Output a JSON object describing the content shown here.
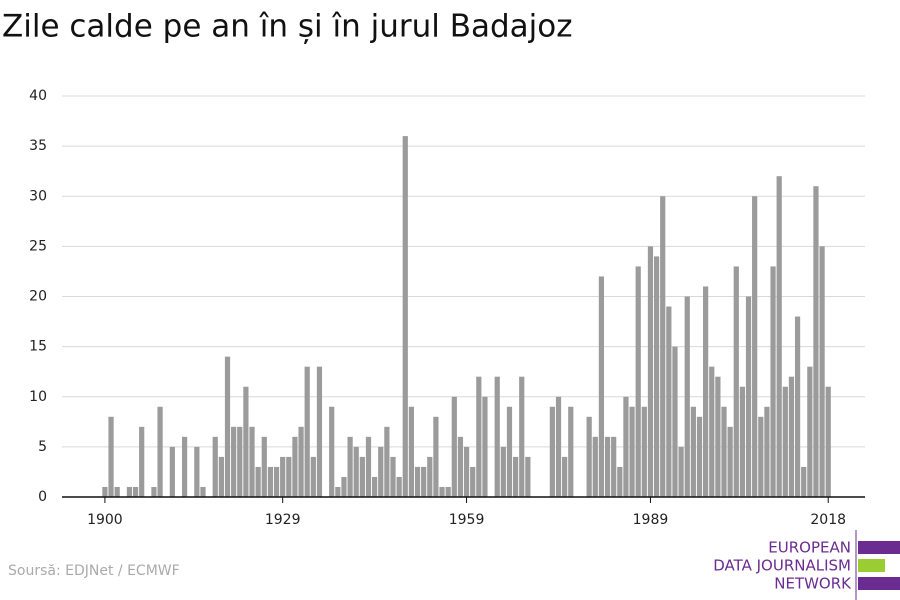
{
  "chart_data": {
    "type": "bar",
    "title": "Zile calde pe an în și în jurul Badajoz",
    "x": [
      1900,
      1901,
      1902,
      1903,
      1904,
      1905,
      1906,
      1907,
      1908,
      1909,
      1910,
      1911,
      1912,
      1913,
      1914,
      1915,
      1916,
      1917,
      1918,
      1919,
      1920,
      1921,
      1922,
      1923,
      1924,
      1925,
      1926,
      1927,
      1928,
      1929,
      1930,
      1931,
      1932,
      1933,
      1934,
      1935,
      1936,
      1937,
      1938,
      1939,
      1940,
      1941,
      1942,
      1943,
      1944,
      1945,
      1946,
      1947,
      1948,
      1949,
      1950,
      1951,
      1952,
      1953,
      1954,
      1955,
      1956,
      1957,
      1958,
      1959,
      1960,
      1961,
      1962,
      1963,
      1964,
      1965,
      1966,
      1967,
      1968,
      1969,
      1970,
      1971,
      1972,
      1973,
      1974,
      1975,
      1976,
      1977,
      1978,
      1979,
      1980,
      1981,
      1982,
      1983,
      1984,
      1985,
      1986,
      1987,
      1988,
      1989,
      1990,
      1991,
      1992,
      1993,
      1994,
      1995,
      1996,
      1997,
      1998,
      1999,
      2000,
      2001,
      2002,
      2003,
      2004,
      2005,
      2006,
      2007,
      2008,
      2009,
      2010,
      2011,
      2012,
      2013,
      2014,
      2015,
      2016,
      2017,
      2018
    ],
    "values": [
      1,
      8,
      1,
      0,
      1,
      1,
      7,
      0,
      1,
      9,
      0,
      5,
      0,
      6,
      0,
      5,
      1,
      0,
      6,
      4,
      14,
      7,
      7,
      11,
      7,
      3,
      6,
      3,
      3,
      4,
      4,
      6,
      7,
      13,
      4,
      13,
      0,
      9,
      1,
      2,
      6,
      5,
      4,
      6,
      2,
      5,
      7,
      4,
      2,
      36,
      9,
      3,
      3,
      4,
      8,
      1,
      1,
      10,
      6,
      5,
      3,
      12,
      10,
      0,
      12,
      5,
      9,
      4,
      12,
      4,
      0,
      0,
      0,
      9,
      10,
      4,
      9,
      0,
      0,
      8,
      6,
      22,
      6,
      6,
      3,
      10,
      9,
      23,
      9,
      25,
      24,
      30,
      19,
      15,
      5,
      20,
      9,
      8,
      21,
      13,
      12,
      9,
      7,
      23,
      11,
      20,
      30,
      8,
      9,
      23,
      32,
      11,
      12,
      18,
      3,
      13,
      31,
      25,
      11
    ],
    "color": "#9b9b9b",
    "xlim": [
      1893,
      2024
    ],
    "xticks": [
      1900,
      1929,
      1959,
      1989,
      2018
    ],
    "ylim": [
      0,
      40
    ],
    "yticks": [
      0,
      5,
      10,
      15,
      20,
      25,
      30,
      35,
      40
    ],
    "grid": true
  },
  "source": "Soursă: EDJNet / ECMWF",
  "logo": [
    "EUROPEAN",
    "DATA JOURNALISM",
    "NETWORK"
  ]
}
